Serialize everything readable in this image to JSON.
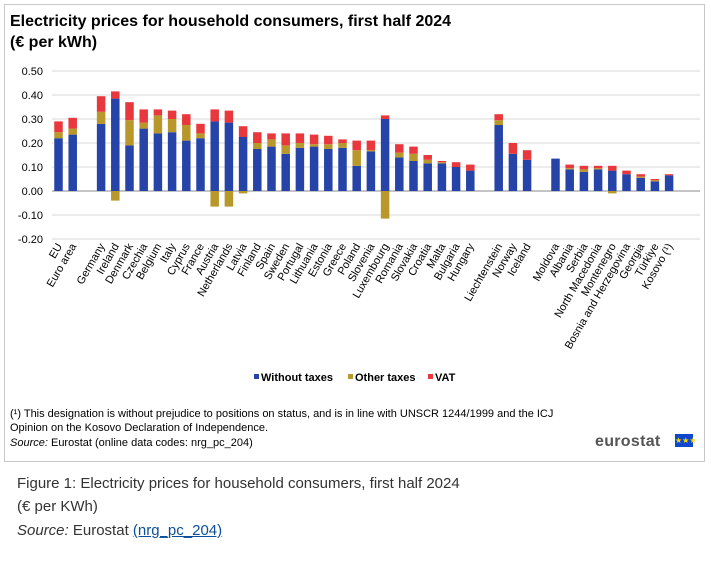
{
  "figure": {
    "title_line1": "Electricity prices for household consumers, first half 2024",
    "title_line2": "(€ per kWh)",
    "footnote_line1": "(¹) This designation is without prejudice to positions on status, and is in line with UNSCR 1244/1999 and the ICJ",
    "footnote_line2": "Opinion on the Kosovo Declaration of Independence.",
    "source_label": "Source:",
    "source_text": " Eurostat (online data codes: nrg_pc_204)",
    "logo_text": "eurostat",
    "logo_flag_stars": "★★★"
  },
  "caption": {
    "title": "Figure 1: Electricity prices for household consumers, first half 2024",
    "unit": "(€ per KWh)",
    "source_label": "Source:",
    "source_text": " Eurostat ",
    "source_link": "(nrg_pc_204)"
  },
  "colors": {
    "without_taxes": "#2644a8",
    "other_taxes": "#b8982b",
    "vat": "#e8383d",
    "grid": "#d9d9d9",
    "axis": "#888888"
  },
  "chart_data": {
    "type": "bar",
    "stacked": true,
    "title": "Electricity prices for household consumers, first half 2024 (€ per kWh)",
    "ylim": [
      -0.2,
      0.5
    ],
    "yticks": [
      "0.50",
      "0.40",
      "0.30",
      "0.20",
      "0.10",
      "0.00",
      "-0.10",
      "-0.20"
    ],
    "ytick_values": [
      0.5,
      0.4,
      0.3,
      0.2,
      0.1,
      0.0,
      -0.1,
      -0.2
    ],
    "grid": true,
    "legend": "bottom",
    "groups": [
      {
        "categories": [
          "EU",
          "Euro area"
        ]
      },
      {
        "categories": [
          "Germany",
          "Ireland",
          "Denmark",
          "Czechia",
          "Belgium",
          "Italy",
          "Cyprus",
          "France",
          "Austria",
          "Netherlands",
          "Latvia",
          "Finland",
          "Spain",
          "Sweden",
          "Portugal",
          "Lithuania",
          "Estonia",
          "Greece",
          "Poland",
          "Slovenia",
          "Luxembourg",
          "Romania",
          "Slovakia",
          "Croatia",
          "Malta",
          "Bulgaria",
          "Hungary"
        ]
      },
      {
        "categories": [
          "Liechtenstein",
          "Norway",
          "Iceland"
        ]
      },
      {
        "categories": [
          "Moldova",
          "Albania",
          "Serbia",
          "North Macedonia",
          "Montenegro",
          "Bosnia and Herzegovina",
          "Georgia",
          "Türkiye",
          "Kosovo (¹)"
        ]
      }
    ],
    "categories": [
      "EU",
      "Euro area",
      "Germany",
      "Ireland",
      "Denmark",
      "Czechia",
      "Belgium",
      "Italy",
      "Cyprus",
      "France",
      "Austria",
      "Netherlands",
      "Latvia",
      "Finland",
      "Spain",
      "Sweden",
      "Portugal",
      "Lithuania",
      "Estonia",
      "Greece",
      "Poland",
      "Slovenia",
      "Luxembourg",
      "Romania",
      "Slovakia",
      "Croatia",
      "Malta",
      "Bulgaria",
      "Hungary",
      "Liechtenstein",
      "Norway",
      "Iceland",
      "Moldova",
      "Albania",
      "Serbia",
      "North Macedonia",
      "Montenegro",
      "Bosnia and Herzegovina",
      "Georgia",
      "Türkiye",
      "Kosovo (¹)"
    ],
    "series": [
      {
        "name": "Without taxes",
        "key": "without_taxes",
        "values": [
          0.22,
          0.235,
          0.28,
          0.385,
          0.19,
          0.26,
          0.24,
          0.245,
          0.21,
          0.22,
          0.29,
          0.285,
          0.225,
          0.175,
          0.185,
          0.155,
          0.18,
          0.185,
          0.175,
          0.18,
          0.105,
          0.165,
          0.3,
          0.14,
          0.125,
          0.115,
          0.115,
          0.1,
          0.085,
          0.275,
          0.155,
          0.13,
          0.135,
          0.09,
          0.08,
          0.09,
          0.085,
          0.07,
          0.055,
          0.04,
          0.065
        ]
      },
      {
        "name": "Other taxes",
        "key": "other_taxes",
        "values": [
          0.025,
          0.025,
          0.05,
          -0.04,
          0.105,
          0.025,
          0.075,
          0.055,
          0.065,
          0.02,
          -0.065,
          -0.065,
          -0.01,
          0.025,
          0.03,
          0.035,
          0.02,
          0.01,
          0.02,
          0.02,
          0.065,
          0.005,
          -0.115,
          0.02,
          0.03,
          0.015,
          0.005,
          0.0,
          0.0,
          0.02,
          0.0,
          0.0,
          0.0,
          0.005,
          0.01,
          0.005,
          -0.01,
          0.0,
          0.005,
          0.005,
          0.0
        ]
      },
      {
        "name": "VAT",
        "key": "vat",
        "values": [
          0.045,
          0.045,
          0.065,
          0.03,
          0.075,
          0.055,
          0.025,
          0.035,
          0.045,
          0.04,
          0.05,
          0.05,
          0.045,
          0.045,
          0.025,
          0.05,
          0.04,
          0.04,
          0.035,
          0.015,
          0.04,
          0.04,
          0.015,
          0.035,
          0.03,
          0.02,
          0.005,
          0.02,
          0.025,
          0.025,
          0.045,
          0.04,
          0.0,
          0.015,
          0.015,
          0.01,
          0.02,
          0.015,
          0.01,
          0.005,
          0.005
        ]
      }
    ],
    "legend_entries": [
      "Without taxes",
      "Other taxes",
      "VAT"
    ]
  }
}
